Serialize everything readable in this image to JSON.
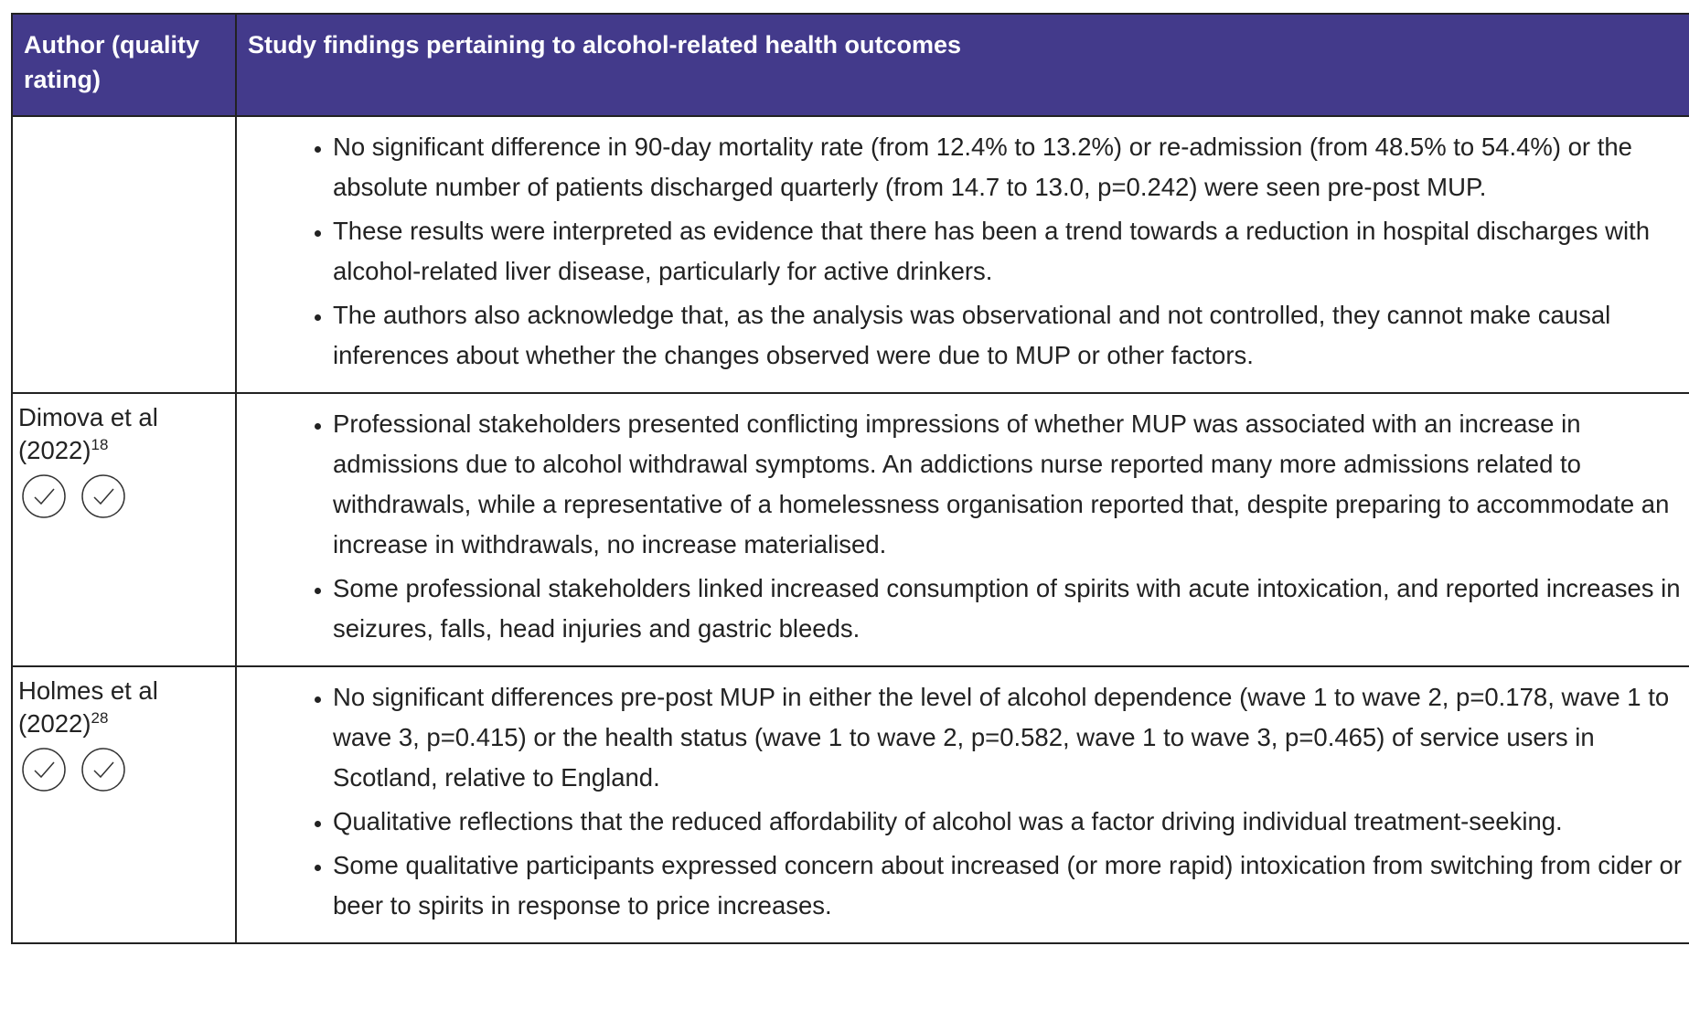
{
  "table": {
    "header": [
      "Author (quality rating)",
      "Study findings pertaining to alcohol-related health outcomes"
    ],
    "rows": [
      {
        "findings": [
          "No significant difference in 90-day mortality rate (from 12.4% to 13.2%) or re-admission (from 48.5% to 54.4%) or the absolute number of patients discharged quarterly (from 14.7 to 13.0, p=0.242) were seen pre-post MUP.",
          "These results were interpreted as evidence that there has been a trend towards a reduction in hospital discharges with alcohol-related liver disease, particularly for active drinkers.",
          "The authors also acknowledge that, as the analysis was observational and not controlled, they cannot make causal inferences about whether the changes observed were due to MUP or other factors."
        ]
      },
      {
        "author": "Dimova et al (2022)",
        "ref": "18",
        "findings": [
          "Professional stakeholders presented conflicting impressions of whether MUP was associated with an increase in admissions due to alcohol withdrawal symptoms. An addictions nurse reported many more admissions related to withdrawals, while a representative of a homelessness organisation reported that, despite preparing to accommodate an increase in withdrawals, no increase materialised.",
          "Some professional stakeholders linked increased consumption of spirits with acute intoxication, and reported increases in seizures, falls, head injuries and gastric bleeds."
        ]
      },
      {
        "author": "Holmes et al (2022)",
        "ref": "28",
        "findings": [
          "No significant differences pre-post MUP in either the level of alcohol dependence (wave 1 to wave 2, p=0.178, wave 1 to wave 3, p=0.415) or the health status (wave 1 to wave 2, p=0.582, wave 1 to wave 3, p=0.465) of service users in Scotland, relative to England.",
          "Qualitative reflections that the reduced affordability of alcohol was a factor driving individual treatment-seeking.",
          "Some qualitative participants expressed concern about increased (or more rapid) intoxication from switching from cider or beer to spirits in response to price increases."
        ]
      }
    ]
  }
}
